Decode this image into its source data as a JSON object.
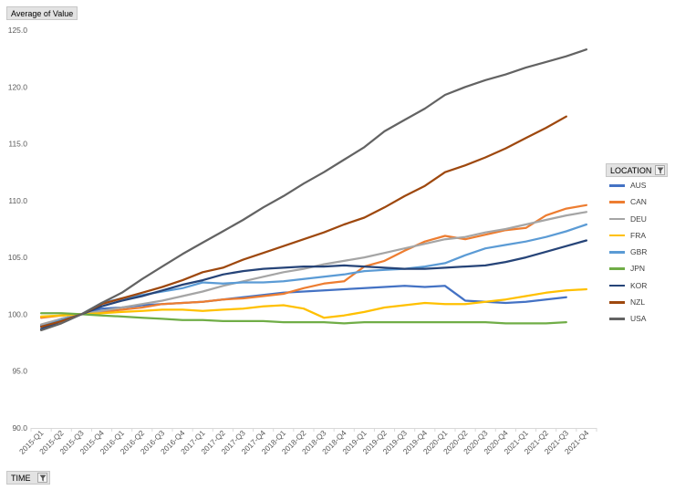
{
  "value_field_label": "Average of Value",
  "location_field_label": "LOCATION",
  "time_field_label": "TIME",
  "filter_icon": "funnel-filter-icon",
  "chart_data": {
    "type": "line",
    "title": "",
    "xlabel": "",
    "ylabel": "",
    "ylim": [
      90,
      125
    ],
    "yticks": [
      "90.0",
      "95.0",
      "100.0",
      "105.0",
      "110.0",
      "115.0",
      "120.0",
      "125.0"
    ],
    "grid": false,
    "legend_position": "right",
    "categories": [
      "2015-Q1",
      "2015-Q2",
      "2015-Q3",
      "2015-Q4",
      "2016-Q1",
      "2016-Q2",
      "2016-Q3",
      "2016-Q4",
      "2017-Q1",
      "2017-Q2",
      "2017-Q3",
      "2017-Q4",
      "2018-Q1",
      "2018-Q2",
      "2018-Q3",
      "2018-Q4",
      "2019-Q1",
      "2019-Q2",
      "2019-Q3",
      "2019-Q4",
      "2020-Q1",
      "2020-Q2",
      "2020-Q3",
      "2020-Q4",
      "2021-Q1",
      "2021-Q2",
      "2021-Q3",
      "2021-Q4"
    ],
    "series": [
      {
        "name": "AUS",
        "color": "#4472c4",
        "values": [
          99.0,
          99.6,
          100.0,
          100.5,
          100.6,
          100.8,
          100.9,
          101.0,
          101.1,
          101.3,
          101.5,
          101.7,
          101.9,
          102.0,
          102.1,
          102.2,
          102.3,
          102.4,
          102.5,
          102.4,
          102.5,
          101.2,
          101.1,
          101.0,
          101.1,
          101.3,
          101.5,
          null
        ]
      },
      {
        "name": "CAN",
        "color": "#ed7d31",
        "values": [
          99.7,
          99.9,
          100.0,
          100.2,
          100.4,
          100.6,
          100.9,
          101.0,
          101.1,
          101.3,
          101.4,
          101.6,
          101.8,
          102.3,
          102.7,
          102.9,
          104.2,
          104.7,
          105.6,
          106.4,
          106.9,
          106.6,
          107.0,
          107.4,
          107.6,
          108.7,
          109.3,
          109.6
        ]
      },
      {
        "name": "DEU",
        "color": "#a5a5a5",
        "values": [
          99.1,
          99.6,
          100.0,
          100.3,
          100.6,
          100.9,
          101.2,
          101.6,
          102.0,
          102.5,
          102.9,
          103.3,
          103.7,
          104.0,
          104.4,
          104.7,
          105.0,
          105.4,
          105.8,
          106.2,
          106.6,
          106.8,
          107.2,
          107.5,
          107.9,
          108.3,
          108.7,
          109.0
        ]
      },
      {
        "name": "FRA",
        "color": "#ffc000",
        "values": [
          99.8,
          99.9,
          100.0,
          100.1,
          100.2,
          100.3,
          100.4,
          100.4,
          100.3,
          100.4,
          100.5,
          100.7,
          100.8,
          100.5,
          99.7,
          99.9,
          100.2,
          100.6,
          100.8,
          101.0,
          100.9,
          100.9,
          101.1,
          101.3,
          101.6,
          101.9,
          102.1,
          102.2
        ]
      },
      {
        "name": "GBR",
        "color": "#5b9bd5",
        "values": [
          98.9,
          99.5,
          100.0,
          101.0,
          101.4,
          101.7,
          102.0,
          102.3,
          102.8,
          102.7,
          102.8,
          102.8,
          102.9,
          103.1,
          103.3,
          103.5,
          103.8,
          103.9,
          104.0,
          104.2,
          104.5,
          105.2,
          105.8,
          106.1,
          106.4,
          106.8,
          107.3,
          107.9
        ]
      },
      {
        "name": "JPN",
        "color": "#70ad47",
        "values": [
          100.1,
          100.1,
          100.0,
          99.9,
          99.8,
          99.7,
          99.6,
          99.5,
          99.5,
          99.4,
          99.4,
          99.4,
          99.3,
          99.3,
          99.3,
          99.2,
          99.3,
          99.3,
          99.3,
          99.3,
          99.3,
          99.3,
          99.3,
          99.2,
          99.2,
          99.2,
          99.3,
          null
        ]
      },
      {
        "name": "KOR",
        "color": "#264478",
        "values": [
          98.7,
          99.4,
          100.0,
          100.7,
          101.2,
          101.6,
          102.1,
          102.6,
          103.0,
          103.5,
          103.8,
          104.0,
          104.1,
          104.2,
          104.2,
          104.3,
          104.2,
          104.1,
          104.0,
          104.0,
          104.1,
          104.2,
          104.3,
          104.6,
          105.0,
          105.5,
          106.0,
          106.5
        ]
      },
      {
        "name": "NZL",
        "color": "#9e480e",
        "values": [
          98.9,
          99.4,
          100.0,
          100.9,
          101.4,
          101.9,
          102.4,
          103.0,
          103.7,
          104.1,
          104.8,
          105.4,
          106.0,
          106.6,
          107.2,
          107.9,
          108.5,
          109.4,
          110.4,
          111.3,
          112.5,
          113.1,
          113.8,
          114.6,
          115.5,
          116.4,
          117.4,
          null
        ]
      },
      {
        "name": "USA",
        "color": "#636363",
        "values": [
          98.6,
          99.2,
          100.0,
          101.0,
          101.9,
          103.1,
          104.2,
          105.3,
          106.3,
          107.3,
          108.3,
          109.4,
          110.4,
          111.5,
          112.5,
          113.6,
          114.7,
          116.1,
          117.1,
          118.1,
          119.3,
          120.0,
          120.6,
          121.1,
          121.7,
          122.2,
          122.7,
          123.3
        ]
      }
    ]
  }
}
